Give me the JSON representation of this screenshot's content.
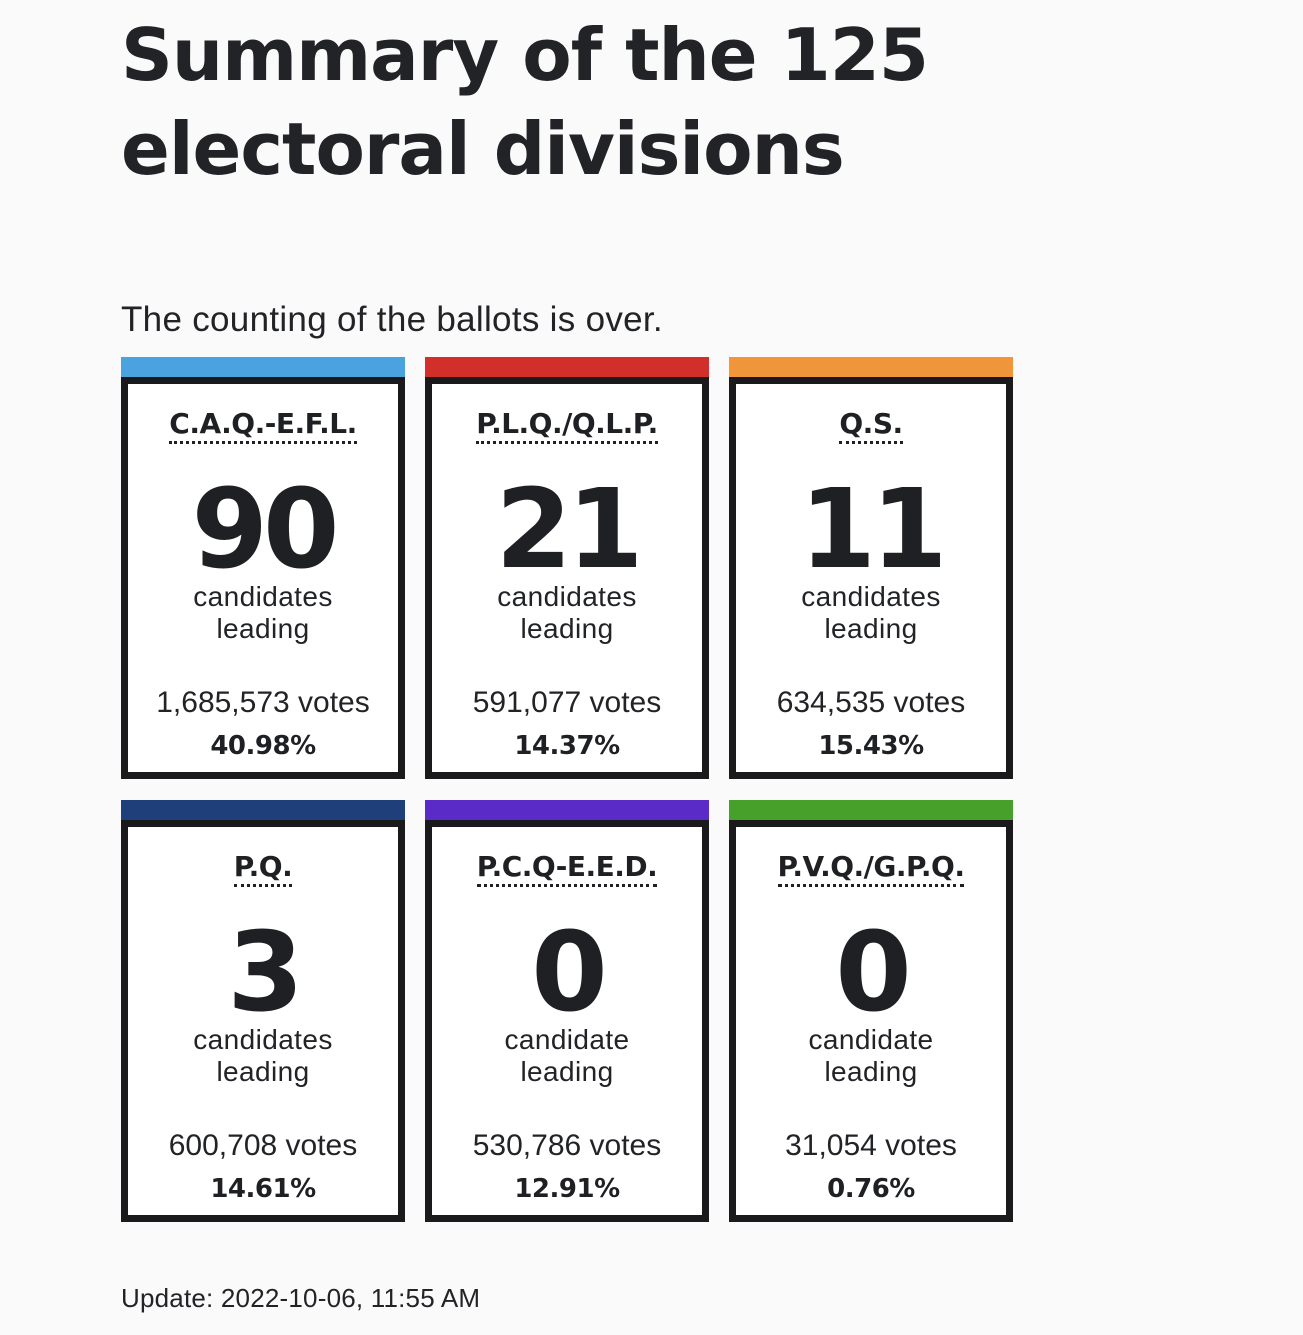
{
  "title": "Summary of the 125 electoral divisions",
  "status": "The counting of the ballots is over.",
  "parties": [
    {
      "name": "C.A.Q.-E.F.L.",
      "color": "#4aa3df",
      "seats": "90",
      "label_line1": "candidates",
      "label_line2": "leading",
      "votes": "1,685,573 votes",
      "percent": "40.98%"
    },
    {
      "name": "P.L.Q./Q.L.P.",
      "color": "#d32f2a",
      "seats": "21",
      "label_line1": "candidates",
      "label_line2": "leading",
      "votes": "591,077 votes",
      "percent": "14.37%"
    },
    {
      "name": "Q.S.",
      "color": "#f0953a",
      "seats": "11",
      "label_line1": "candidates",
      "label_line2": "leading",
      "votes": "634,535 votes",
      "percent": "15.43%"
    },
    {
      "name": "P.Q.",
      "color": "#1f3f7a",
      "seats": "3",
      "label_line1": "candidates",
      "label_line2": "leading",
      "votes": "600,708 votes",
      "percent": "14.61%"
    },
    {
      "name": "P.C.Q-E.E.D.",
      "color": "#5b2bc7",
      "seats": "0",
      "label_line1": "candidate",
      "label_line2": "leading",
      "votes": "530,786 votes",
      "percent": "12.91%"
    },
    {
      "name": "P.V.Q./G.P.Q.",
      "color": "#46a02a",
      "seats": "0",
      "label_line1": "candidate",
      "label_line2": "leading",
      "votes": "31,054 votes",
      "percent": "0.76%"
    }
  ],
  "update": "Update: 2022-10-06, 11:55 AM"
}
